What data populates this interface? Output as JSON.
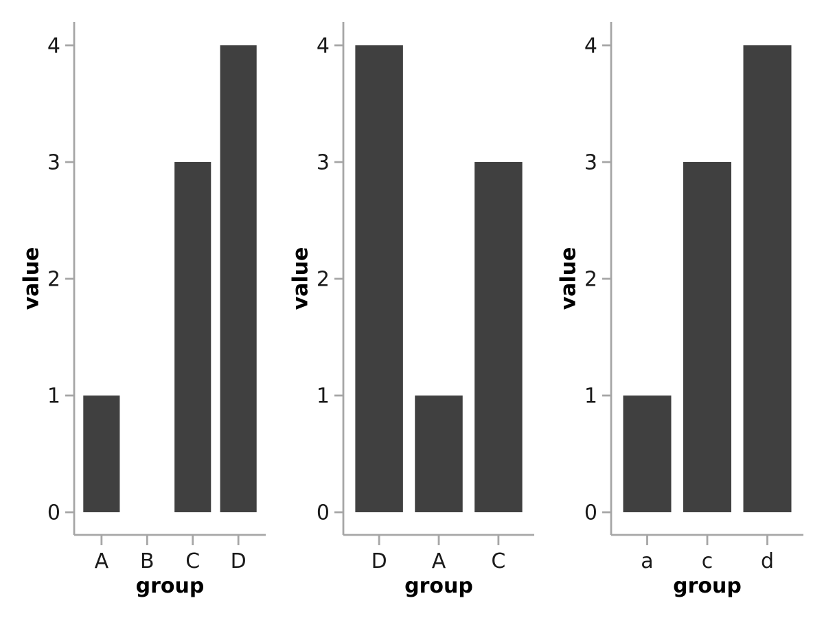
{
  "figure": {
    "background": "#ffffff",
    "style": {
      "bar_color": "#404040",
      "axis_line_color": "#a6a6a6",
      "tick_mark_color": "#a6a6a6",
      "tick_label_color": "#1a1a1a",
      "axis_title_color": "#000000"
    },
    "chart_data": [
      {
        "type": "bar",
        "categories": [
          "A",
          "B",
          "C",
          "D"
        ],
        "values": [
          1,
          0,
          3,
          4
        ],
        "title": "",
        "xlabel": "group",
        "ylabel": "value",
        "yticks": [
          0,
          1,
          2,
          3,
          4
        ],
        "ylim": [
          0,
          4
        ],
        "grid": "off",
        "legend": "none"
      },
      {
        "type": "bar",
        "categories": [
          "D",
          "A",
          "C"
        ],
        "values": [
          4,
          1,
          3
        ],
        "title": "",
        "xlabel": "group",
        "ylabel": "value",
        "yticks": [
          0,
          1,
          2,
          3,
          4
        ],
        "ylim": [
          0,
          4
        ],
        "grid": "off",
        "legend": "none"
      },
      {
        "type": "bar",
        "categories": [
          "a",
          "c",
          "d"
        ],
        "values": [
          1,
          3,
          4
        ],
        "title": "",
        "xlabel": "group",
        "ylabel": "value",
        "yticks": [
          0,
          1,
          2,
          3,
          4
        ],
        "ylim": [
          0,
          4
        ],
        "grid": "off",
        "legend": "none"
      }
    ]
  }
}
